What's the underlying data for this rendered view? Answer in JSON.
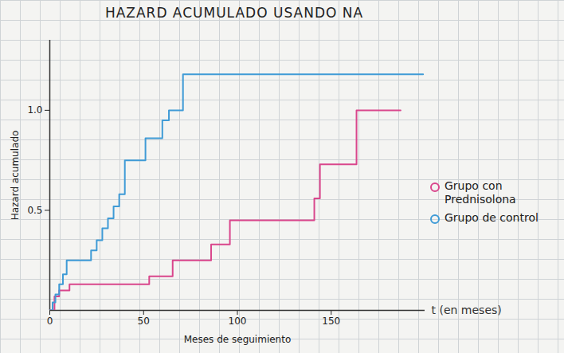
{
  "chart_data": {
    "type": "line",
    "title": "HAZARD ACUMULADO USANDO NA",
    "x_label": "Meses de seguimiento",
    "y_label": "Hazard acumulado",
    "annotations": [
      {
        "text": "t (en meses)"
      }
    ],
    "xlim": [
      0,
      200
    ],
    "ylim": [
      0,
      1.35
    ],
    "xticks": [
      0,
      50,
      100,
      150
    ],
    "yticks": [
      0.5,
      {
        "value": 1,
        "label": "1.0"
      }
    ],
    "legend": "right",
    "line_style": "step",
    "series": [
      {
        "name": "Grupo con Prednisolona",
        "color": "#d9468c",
        "marker": "circle",
        "x": [
          0,
          2.5,
          5,
          10.5,
          53,
          65.5,
          86,
          96,
          141,
          144,
          163.5,
          187
        ],
        "values": [
          0,
          0.07,
          0.1,
          0.13,
          0.17,
          0.25,
          0.33,
          0.45,
          0.56,
          0.73,
          1.0,
          1.0
        ]
      },
      {
        "name": "Grupo de control",
        "color": "#3f9bd6",
        "marker": "circle",
        "x": [
          0,
          1.5,
          3,
          5,
          7,
          9,
          22,
          25,
          28,
          31,
          34,
          37,
          40,
          51,
          60,
          63.5,
          71,
          199
        ],
        "values": [
          0,
          0.04,
          0.08,
          0.13,
          0.18,
          0.25,
          0.3,
          0.35,
          0.41,
          0.46,
          0.52,
          0.58,
          0.75,
          0.86,
          0.95,
          1.0,
          1.18,
          1.18
        ]
      }
    ]
  }
}
